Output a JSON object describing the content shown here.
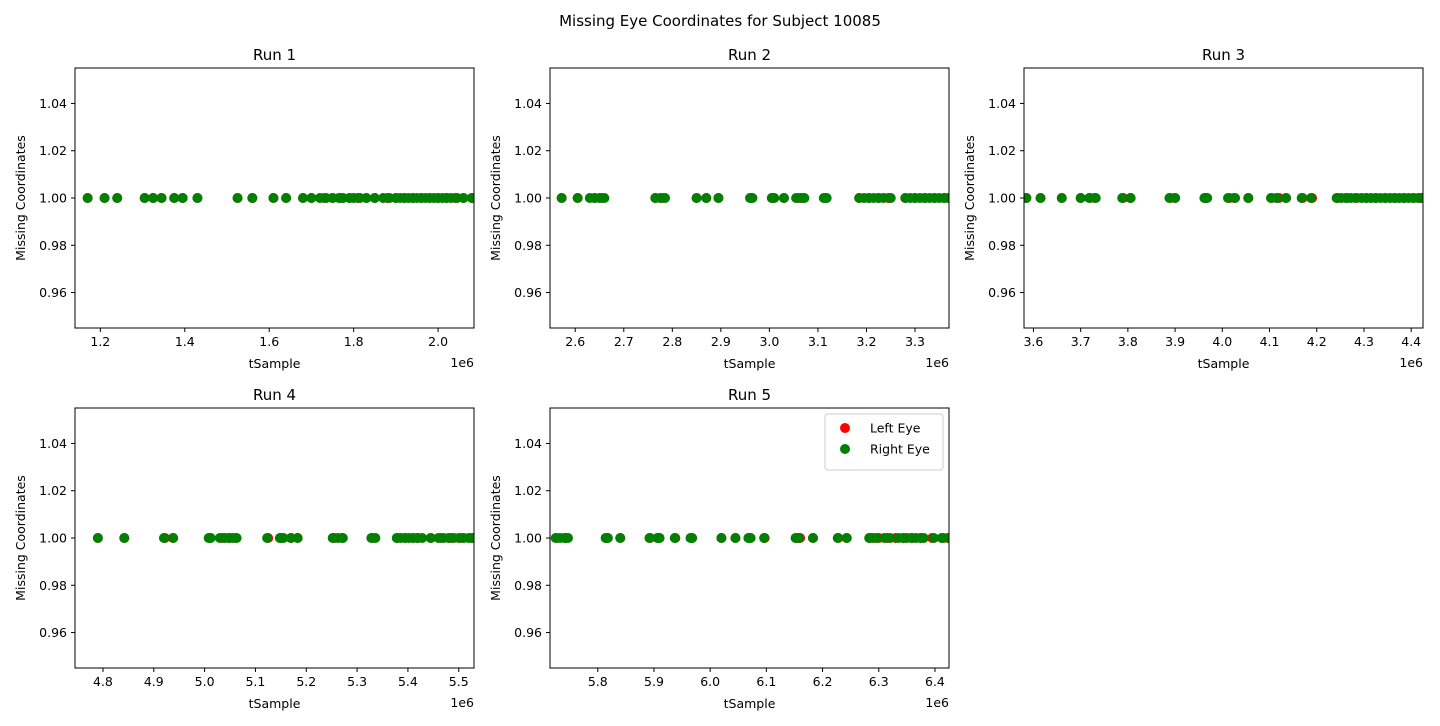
{
  "figure": {
    "suptitle": "Missing Eye Coordinates for Subject 10085"
  },
  "legend": {
    "location": "top-right",
    "entries": [
      {
        "label": "Left Eye",
        "color": "#ff0000"
      },
      {
        "label": "Right Eye",
        "color": "#008000"
      }
    ]
  },
  "chart_data": [
    {
      "type": "scatter",
      "title": "Run 1",
      "xlabel": "tSample",
      "ylabel": "Missing Coordinates",
      "x_offset_label": "1e6",
      "xlim": [
        1140000,
        2085000
      ],
      "ylim": [
        0.945,
        1.055
      ],
      "xticks": [
        {
          "v": 1200000,
          "label": "1.2"
        },
        {
          "v": 1400000,
          "label": "1.4"
        },
        {
          "v": 1600000,
          "label": "1.6"
        },
        {
          "v": 1800000,
          "label": "1.8"
        },
        {
          "v": 2000000,
          "label": "2.0"
        }
      ],
      "yticks": [
        {
          "v": 0.96,
          "label": "0.96"
        },
        {
          "v": 0.98,
          "label": "0.98"
        },
        {
          "v": 1.0,
          "label": "1.00"
        },
        {
          "v": 1.02,
          "label": "1.02"
        },
        {
          "v": 1.04,
          "label": "1.04"
        }
      ],
      "series": [
        {
          "name": "Left Eye",
          "color": "#ff0000",
          "y": 1.0,
          "x": [
            1170000,
            1210000,
            1240000,
            1305000,
            1325000,
            1345000,
            1375000,
            1395000,
            1430000,
            1525000,
            1560000,
            1610000,
            1640000,
            1680000,
            1700000,
            1730000,
            1750000,
            1770000,
            1790000,
            1810000,
            1830000,
            1850000,
            1880000,
            1900000,
            1920000,
            1940000,
            1960000,
            1980000,
            2000000,
            2020000,
            2040000,
            2060000,
            2080000
          ]
        },
        {
          "name": "Right Eye",
          "color": "#008000",
          "y": 1.0,
          "x": [
            1170000,
            1210000,
            1240000,
            1305000,
            1325000,
            1345000,
            1375000,
            1395000,
            1430000,
            1525000,
            1560000,
            1610000,
            1640000,
            1680000,
            1700000,
            1720000,
            1735000,
            1750000,
            1765000,
            1775000,
            1790000,
            1800000,
            1815000,
            1830000,
            1850000,
            1870000,
            1885000,
            1900000,
            1910000,
            1920000,
            1930000,
            1940000,
            1950000,
            1960000,
            1970000,
            1980000,
            1990000,
            2000000,
            2010000,
            2020000,
            2030000,
            2045000,
            2060000,
            2080000
          ]
        }
      ]
    },
    {
      "type": "scatter",
      "title": "Run 2",
      "xlabel": "tSample",
      "ylabel": "Missing Coordinates",
      "x_offset_label": "1e6",
      "xlim": [
        2548000,
        3370000
      ],
      "ylim": [
        0.945,
        1.055
      ],
      "xticks": [
        {
          "v": 2600000,
          "label": "2.6"
        },
        {
          "v": 2700000,
          "label": "2.7"
        },
        {
          "v": 2800000,
          "label": "2.8"
        },
        {
          "v": 2900000,
          "label": "2.9"
        },
        {
          "v": 3000000,
          "label": "3.0"
        },
        {
          "v": 3100000,
          "label": "3.1"
        },
        {
          "v": 3200000,
          "label": "3.2"
        },
        {
          "v": 3300000,
          "label": "3.3"
        }
      ],
      "yticks": [
        {
          "v": 0.96,
          "label": "0.96"
        },
        {
          "v": 0.98,
          "label": "0.98"
        },
        {
          "v": 1.0,
          "label": "1.00"
        },
        {
          "v": 1.02,
          "label": "1.02"
        },
        {
          "v": 1.04,
          "label": "1.04"
        }
      ],
      "series": [
        {
          "name": "Left Eye",
          "color": "#ff0000",
          "y": 1.0,
          "x": [
            2572000,
            2605000,
            2640000,
            2655000,
            2765000,
            2780000,
            2850000,
            2870000,
            2895000,
            2962000,
            3005000,
            3030000,
            3060000,
            3070000,
            3115000,
            3185000,
            3205000,
            3225000,
            3245000,
            3280000,
            3300000,
            3320000,
            3340000,
            3360000
          ]
        },
        {
          "name": "Right Eye",
          "color": "#008000",
          "y": 1.0,
          "x": [
            2572000,
            2605000,
            2630000,
            2640000,
            2650000,
            2660000,
            2765000,
            2775000,
            2785000,
            2850000,
            2870000,
            2895000,
            2960000,
            2965000,
            3005000,
            3010000,
            3030000,
            3055000,
            3065000,
            3072000,
            3112000,
            3118000,
            3185000,
            3195000,
            3205000,
            3215000,
            3225000,
            3235000,
            3250000,
            3280000,
            3290000,
            3300000,
            3310000,
            3320000,
            3330000,
            3340000,
            3350000,
            3360000,
            3368000
          ]
        }
      ]
    },
    {
      "type": "scatter",
      "title": "Run 3",
      "xlabel": "tSample",
      "ylabel": "Missing Coordinates",
      "x_offset_label": "1e6",
      "xlim": [
        3580000,
        4425000
      ],
      "ylim": [
        0.945,
        1.055
      ],
      "xticks": [
        {
          "v": 3600000,
          "label": "3.6"
        },
        {
          "v": 3700000,
          "label": "3.7"
        },
        {
          "v": 3800000,
          "label": "3.8"
        },
        {
          "v": 3900000,
          "label": "3.9"
        },
        {
          "v": 4000000,
          "label": "4.0"
        },
        {
          "v": 4100000,
          "label": "4.1"
        },
        {
          "v": 4200000,
          "label": "4.2"
        },
        {
          "v": 4300000,
          "label": "4.3"
        },
        {
          "v": 4400000,
          "label": "4.4"
        }
      ],
      "yticks": [
        {
          "v": 0.96,
          "label": "0.96"
        },
        {
          "v": 0.98,
          "label": "0.98"
        },
        {
          "v": 1.0,
          "label": "1.00"
        },
        {
          "v": 1.02,
          "label": "1.02"
        },
        {
          "v": 1.04,
          "label": "1.04"
        }
      ],
      "series": [
        {
          "name": "Left Eye",
          "color": "#ff0000",
          "y": 1.0,
          "x": [
            3585000,
            3615000,
            3660000,
            3700000,
            3720000,
            3730000,
            3790000,
            3805000,
            3890000,
            3900000,
            3965000,
            4015000,
            4025000,
            4055000,
            4105000,
            4120000,
            4135000,
            4170000,
            4190000,
            4245000,
            4265000,
            4285000,
            4305000,
            4325000,
            4345000,
            4365000,
            4385000,
            4405000,
            4420000
          ]
        },
        {
          "name": "Right Eye",
          "color": "#008000",
          "y": 1.0,
          "x": [
            3585000,
            3615000,
            3660000,
            3700000,
            3718000,
            3732000,
            3788000,
            3806000,
            3888000,
            3900000,
            3962000,
            3968000,
            4012000,
            4027000,
            4055000,
            4103000,
            4115000,
            4135000,
            4168000,
            4188000,
            4242000,
            4252000,
            4262000,
            4272000,
            4282000,
            4295000,
            4305000,
            4315000,
            4325000,
            4335000,
            4345000,
            4355000,
            4365000,
            4375000,
            4385000,
            4395000,
            4405000,
            4415000,
            4422000
          ]
        }
      ]
    },
    {
      "type": "scatter",
      "title": "Run 4",
      "xlabel": "tSample",
      "ylabel": "Missing Coordinates",
      "x_offset_label": "1e6",
      "xlim": [
        4745000,
        5530000
      ],
      "ylim": [
        0.945,
        1.055
      ],
      "xticks": [
        {
          "v": 4800000,
          "label": "4.8"
        },
        {
          "v": 4900000,
          "label": "4.9"
        },
        {
          "v": 5000000,
          "label": "5.0"
        },
        {
          "v": 5100000,
          "label": "5.1"
        },
        {
          "v": 5200000,
          "label": "5.2"
        },
        {
          "v": 5300000,
          "label": "5.3"
        },
        {
          "v": 5400000,
          "label": "5.4"
        },
        {
          "v": 5500000,
          "label": "5.5"
        }
      ],
      "yticks": [
        {
          "v": 0.96,
          "label": "0.96"
        },
        {
          "v": 0.98,
          "label": "0.98"
        },
        {
          "v": 1.0,
          "label": "1.00"
        },
        {
          "v": 1.02,
          "label": "1.02"
        },
        {
          "v": 1.04,
          "label": "1.04"
        }
      ],
      "series": [
        {
          "name": "Left Eye",
          "color": "#ff0000",
          "y": 1.0,
          "x": [
            4790000,
            4842000,
            4922000,
            4938000,
            5010000,
            5035000,
            5050000,
            5062000,
            5125000,
            5150000,
            5170000,
            5183000,
            5255000,
            5270000,
            5330000,
            5380000,
            5395000,
            5410000,
            5420000,
            5445000,
            5465000,
            5485000,
            5505000,
            5525000
          ]
        },
        {
          "name": "Right Eye",
          "color": "#008000",
          "y": 1.0,
          "x": [
            4790000,
            4842000,
            4920000,
            4938000,
            5008000,
            5012000,
            5030000,
            5040000,
            5048000,
            5056000,
            5063000,
            5123000,
            5148000,
            5155000,
            5170000,
            5183000,
            5252000,
            5262000,
            5272000,
            5328000,
            5336000,
            5378000,
            5386000,
            5394000,
            5402000,
            5410000,
            5418000,
            5428000,
            5445000,
            5460000,
            5470000,
            5480000,
            5490000,
            5500000,
            5510000,
            5520000,
            5528000
          ]
        }
      ]
    },
    {
      "type": "scatter",
      "title": "Run 5",
      "xlabel": "tSample",
      "ylabel": "Missing Coordinates",
      "x_offset_label": "1e6",
      "xlim": [
        5715000,
        6425000
      ],
      "ylim": [
        0.945,
        1.055
      ],
      "xticks": [
        {
          "v": 5800000,
          "label": "5.8"
        },
        {
          "v": 5900000,
          "label": "5.9"
        },
        {
          "v": 6000000,
          "label": "6.0"
        },
        {
          "v": 6100000,
          "label": "6.1"
        },
        {
          "v": 6200000,
          "label": "6.2"
        },
        {
          "v": 6300000,
          "label": "6.3"
        },
        {
          "v": 6400000,
          "label": "6.4"
        }
      ],
      "yticks": [
        {
          "v": 0.96,
          "label": "0.96"
        },
        {
          "v": 0.98,
          "label": "0.98"
        },
        {
          "v": 1.0,
          "label": "1.00"
        },
        {
          "v": 1.02,
          "label": "1.02"
        },
        {
          "v": 1.04,
          "label": "1.04"
        }
      ],
      "series": [
        {
          "name": "Left Eye",
          "color": "#ff0000",
          "y": 1.0,
          "x": [
            5727000,
            5743000,
            5815000,
            5840000,
            5893000,
            5908000,
            5938000,
            5967000,
            6020000,
            6045000,
            6070000,
            6097000,
            6155000,
            6160000,
            6183000,
            6228000,
            6243000,
            6285000,
            6300000,
            6315000,
            6330000,
            6345000,
            6360000,
            6375000,
            6395000,
            6415000
          ]
        },
        {
          "name": "Right Eye",
          "color": "#008000",
          "y": 1.0,
          "x": [
            5725000,
            5733000,
            5741000,
            5747000,
            5814000,
            5818000,
            5840000,
            5892000,
            5906000,
            5910000,
            5937000,
            5965000,
            5968000,
            6020000,
            6045000,
            6068000,
            6072000,
            6096000,
            6152000,
            6158000,
            6183000,
            6227000,
            6243000,
            6283000,
            6290000,
            6296000,
            6310000,
            6320000,
            6335000,
            6343000,
            6350000,
            6358000,
            6366000,
            6374000,
            6380000,
            6398000,
            6412000,
            6423000
          ]
        }
      ]
    }
  ]
}
